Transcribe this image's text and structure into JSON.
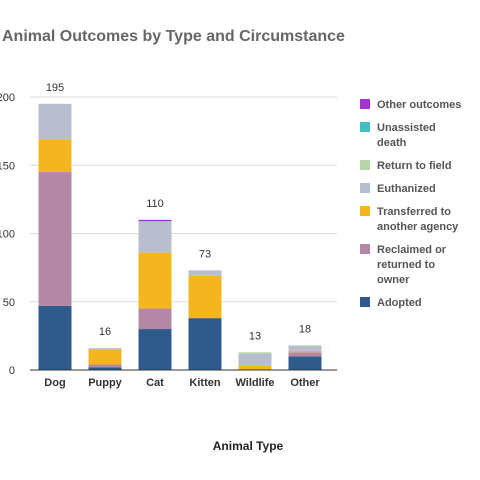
{
  "chart_data": {
    "type": "bar",
    "stacked": true,
    "title": "Animal Outcomes by Type and Circumstance",
    "xlabel": "Animal Type",
    "ylabel": "",
    "ylim": [
      0,
      200
    ],
    "yticks": [
      0,
      50,
      100,
      150,
      200
    ],
    "ytick_labels": [
      "0",
      "50",
      "100",
      "150",
      "200"
    ],
    "grid": true,
    "legend_position": "right",
    "categories": [
      "Dog",
      "Puppy",
      "Cat",
      "Kitten",
      "Wildlife",
      "Other"
    ],
    "totals": [
      "195",
      "16",
      "110",
      "73",
      "13",
      "18"
    ],
    "series": [
      {
        "name": "Adopted",
        "color": "#2e5b8c",
        "values": [
          47,
          2,
          30,
          38,
          0,
          10
        ]
      },
      {
        "name": "Reclaimed or returned to owner",
        "color": "#b487a4",
        "values": [
          98,
          2,
          15,
          0,
          0,
          3
        ]
      },
      {
        "name": "Transferred to another agency",
        "color": "#f3b61f",
        "values": [
          24,
          11,
          41,
          31,
          3,
          1
        ]
      },
      {
        "name": "Euthanized",
        "color": "#b8bdd0",
        "values": [
          26,
          1,
          23,
          4,
          9,
          4
        ]
      },
      {
        "name": "Return to field",
        "color": "#b7d7a8",
        "values": [
          0,
          0,
          0,
          0,
          1,
          0
        ]
      },
      {
        "name": "Unassisted death",
        "color": "#46bdc6",
        "values": [
          0,
          0,
          0,
          0,
          0,
          0
        ]
      },
      {
        "name": "Other outcomes",
        "color": "#a833cc",
        "values": [
          0,
          0,
          1,
          0,
          0,
          0
        ]
      }
    ],
    "legend_order": [
      "Other outcomes",
      "Unassisted death",
      "Return to field",
      "Euthanized",
      "Transferred to another agency",
      "Reclaimed or returned to owner",
      "Adopted"
    ],
    "legend_lines": {
      "Other outcomes": [
        "Other outcomes"
      ],
      "Unassisted death": [
        "Unassisted",
        "death"
      ],
      "Return to field": [
        "Return to field"
      ],
      "Euthanized": [
        "Euthanized"
      ],
      "Transferred to another agency": [
        "Transferred to",
        "another agency"
      ],
      "Reclaimed or returned to owner": [
        "Reclaimed or",
        "returned to",
        "owner"
      ],
      "Adopted": [
        "Adopted"
      ]
    }
  }
}
